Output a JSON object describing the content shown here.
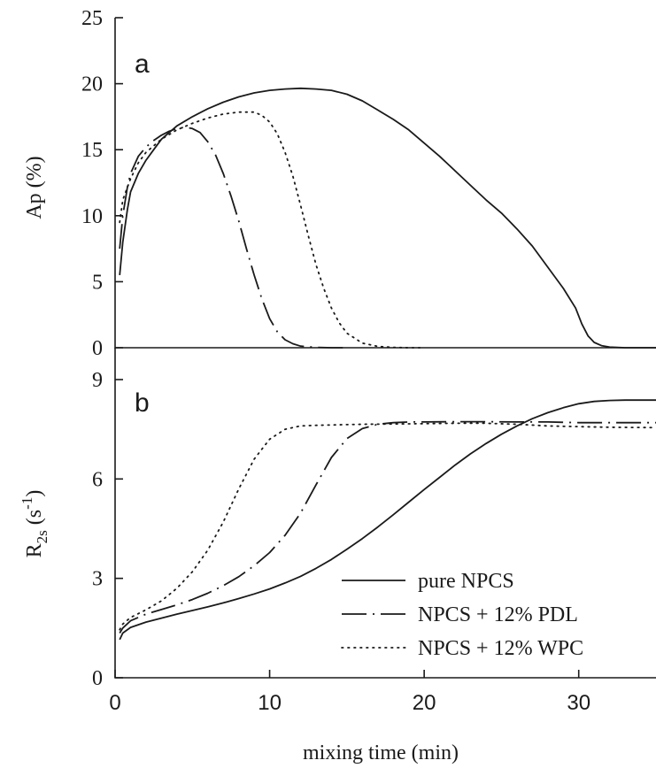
{
  "chart_data": [
    {
      "panel_label": "a",
      "type": "line",
      "ylabel": "Ap (%)",
      "ylim": [
        0,
        25
      ],
      "xlim": [
        0,
        35
      ],
      "yticks": [
        "0",
        "5",
        "10",
        "15",
        "20",
        "25"
      ],
      "series": [
        {
          "name": "pure NPCS",
          "style": "solid",
          "x": [
            0.3,
            0.5,
            0.8,
            1,
            1.5,
            2,
            2.5,
            3,
            4,
            5,
            6,
            7,
            8,
            9,
            10,
            11,
            12,
            13,
            14,
            15,
            16,
            17,
            18,
            19,
            20,
            21,
            22,
            23,
            24,
            25,
            26,
            27,
            28,
            29,
            29.8,
            30.2,
            30.6,
            31,
            31.5,
            32,
            33,
            34,
            35
          ],
          "y": [
            5.5,
            8,
            10.5,
            11.8,
            13.2,
            14.2,
            15,
            15.8,
            16.8,
            17.5,
            18.1,
            18.6,
            19,
            19.3,
            19.5,
            19.6,
            19.65,
            19.6,
            19.5,
            19.2,
            18.7,
            18,
            17.3,
            16.5,
            15.5,
            14.5,
            13.4,
            12.3,
            11.2,
            10.2,
            9,
            7.7,
            6.1,
            4.5,
            3,
            1.8,
            0.9,
            0.4,
            0.15,
            0.05,
            0,
            0,
            0
          ]
        },
        {
          "name": "NPCS + 12% PDL",
          "style": "dash-dot",
          "x": [
            0.3,
            0.5,
            0.8,
            1,
            1.5,
            2,
            2.5,
            3,
            3.5,
            4,
            4.5,
            5,
            5.5,
            6,
            6.5,
            7,
            7.5,
            8,
            8.5,
            9,
            9.5,
            10,
            10.5,
            11,
            11.5,
            12,
            13,
            14,
            15
          ],
          "y": [
            7.5,
            10,
            12.2,
            13.2,
            14.5,
            15.2,
            15.7,
            16.1,
            16.4,
            16.6,
            16.7,
            16.6,
            16.3,
            15.6,
            14.6,
            13.2,
            11.5,
            9.6,
            7.5,
            5.5,
            3.7,
            2.2,
            1.2,
            0.6,
            0.3,
            0.12,
            0.03,
            0,
            0
          ]
        },
        {
          "name": "NPCS + 12% WPC",
          "style": "dotted",
          "x": [
            0.3,
            0.5,
            1,
            1.5,
            2,
            3,
            4,
            5,
            6,
            7,
            8,
            9,
            9.5,
            10,
            10.5,
            11,
            11.5,
            12,
            12.5,
            13,
            13.5,
            14,
            14.5,
            15,
            16,
            17,
            18,
            19,
            20
          ],
          "y": [
            9.5,
            11.2,
            12.8,
            14,
            14.8,
            15.8,
            16.5,
            17,
            17.4,
            17.7,
            17.85,
            17.85,
            17.6,
            17.1,
            16.2,
            14.8,
            13,
            10.8,
            8.5,
            6.3,
            4.5,
            3,
            1.9,
            1.1,
            0.35,
            0.1,
            0.03,
            0,
            0
          ]
        }
      ]
    },
    {
      "panel_label": "b",
      "type": "line",
      "ylabel_main": "R",
      "ylabel_sub": "2s",
      "ylabel_paren_open": " (s",
      "ylabel_sup": "-1",
      "ylabel_paren_close": ")",
      "ylim": [
        0,
        9
      ],
      "xlim": [
        0,
        35
      ],
      "yticks": [
        "0",
        "3",
        "6",
        "9"
      ],
      "xticks": [
        "0",
        "10",
        "20",
        "30"
      ],
      "xlabel": "mixing time (min)",
      "series": [
        {
          "name": "pure NPCS",
          "style": "solid",
          "x": [
            0.3,
            0.5,
            1,
            2,
            3,
            4,
            5,
            6,
            7,
            8,
            9,
            10,
            11,
            12,
            13,
            14,
            15,
            16,
            17,
            18,
            19,
            20,
            21,
            22,
            23,
            24,
            25,
            26,
            27,
            28,
            29,
            30,
            31,
            32,
            33,
            34,
            35
          ],
          "y": [
            1.15,
            1.35,
            1.52,
            1.68,
            1.8,
            1.92,
            2.03,
            2.14,
            2.26,
            2.39,
            2.53,
            2.68,
            2.86,
            3.06,
            3.3,
            3.57,
            3.88,
            4.2,
            4.55,
            4.92,
            5.3,
            5.68,
            6.05,
            6.42,
            6.76,
            7.07,
            7.35,
            7.6,
            7.82,
            8.0,
            8.15,
            8.27,
            8.34,
            8.37,
            8.38,
            8.38,
            8.38
          ]
        },
        {
          "name": "NPCS + 12% PDL",
          "style": "long-dash",
          "x": [
            0.3,
            0.5,
            1,
            2,
            3,
            4,
            5,
            6,
            7,
            8,
            9,
            10,
            11,
            12,
            13,
            14,
            15,
            16,
            17,
            18,
            19,
            20,
            22,
            24,
            26,
            28,
            30,
            32,
            35
          ],
          "y": [
            1.35,
            1.5,
            1.72,
            1.92,
            2.06,
            2.2,
            2.36,
            2.55,
            2.78,
            3.05,
            3.38,
            3.78,
            4.3,
            4.97,
            5.82,
            6.65,
            7.22,
            7.52,
            7.65,
            7.7,
            7.72,
            7.72,
            7.73,
            7.73,
            7.72,
            7.72,
            7.7,
            7.7,
            7.7
          ]
        },
        {
          "name": "NPCS + 12% WPC",
          "style": "dotted",
          "x": [
            0.3,
            0.5,
            1,
            2,
            3,
            4,
            5,
            6,
            7,
            8,
            9,
            10,
            11,
            12,
            13,
            14,
            15,
            16,
            18,
            20,
            22,
            24,
            26,
            28,
            30,
            32,
            35
          ],
          "y": [
            1.45,
            1.62,
            1.82,
            2.05,
            2.32,
            2.7,
            3.2,
            3.85,
            4.7,
            5.7,
            6.6,
            7.2,
            7.5,
            7.6,
            7.62,
            7.63,
            7.64,
            7.65,
            7.66,
            7.67,
            7.68,
            7.68,
            7.65,
            7.6,
            7.58,
            7.56,
            7.55
          ]
        }
      ],
      "legend_position": "bottom-right"
    }
  ]
}
